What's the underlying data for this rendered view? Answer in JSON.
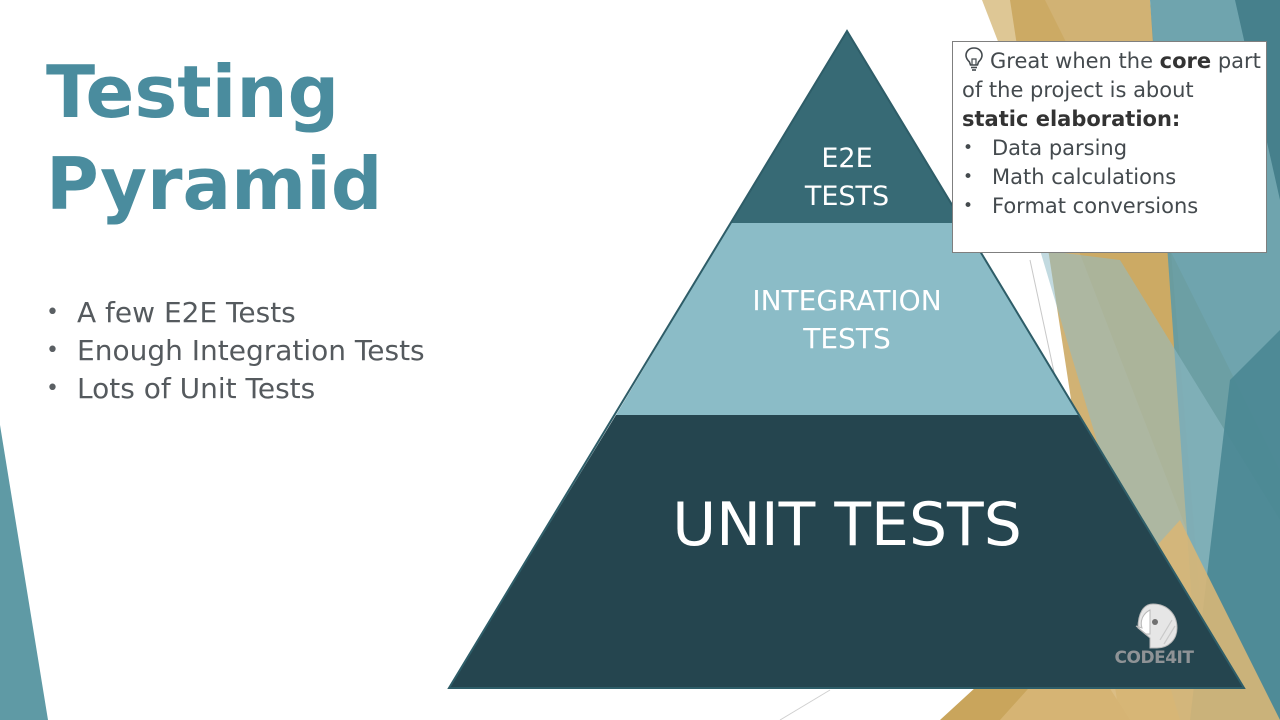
{
  "slide": {
    "title_line1": "Testing",
    "title_line2": "Pyramid",
    "bullets": [
      "A few E2E Tests",
      "Enough Integration Tests",
      "Lots of Unit Tests"
    ]
  },
  "pyramid": {
    "top": {
      "line1": "E2E",
      "line2": "TESTS",
      "color": "#376a75"
    },
    "middle": {
      "line1": "INTEGRATION",
      "line2": "TESTS",
      "color": "#8bbcc7"
    },
    "base": {
      "label": "UNIT TESTS",
      "color": "#25454f"
    }
  },
  "callout": {
    "icon": "lightbulb-icon",
    "text_1": "Great when the ",
    "bold_1": "core",
    "text_2": " part of the project is about ",
    "bold_2": "static elaboration:",
    "items": [
      "Data parsing",
      "Math calculations",
      "Format conversions"
    ]
  },
  "logo": {
    "icon": "bird-logo-icon",
    "text": "CODE4IT"
  },
  "colors": {
    "title": "#4a8c9e",
    "teal_accent": "#4f8f9c",
    "gold_accent": "#c9a55c"
  }
}
